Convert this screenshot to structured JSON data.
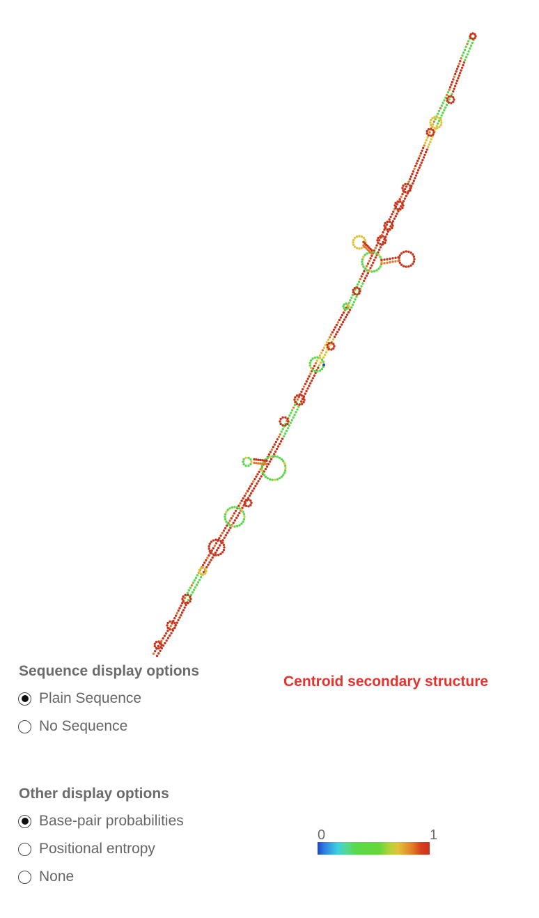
{
  "sequence_options": {
    "title": "Sequence display options",
    "options": [
      {
        "label": "Plain Sequence",
        "selected": true
      },
      {
        "label": "No Sequence",
        "selected": false
      }
    ]
  },
  "other_options": {
    "title": "Other display options",
    "options": [
      {
        "label": "Base-pair probabilities",
        "selected": true
      },
      {
        "label": "Positional entropy",
        "selected": false
      },
      {
        "label": "None",
        "selected": false
      }
    ]
  },
  "structure": {
    "title": "Centroid secondary structure"
  },
  "color_scale": {
    "min_label": "0",
    "max_label": "1"
  },
  "colors": {
    "high": "#c7341b",
    "mid_high": "#e07a2a",
    "mid": "#e0c23a",
    "low_mid": "#5bd84a",
    "low": "#1e45c8",
    "title_red": "#e8322a"
  }
}
